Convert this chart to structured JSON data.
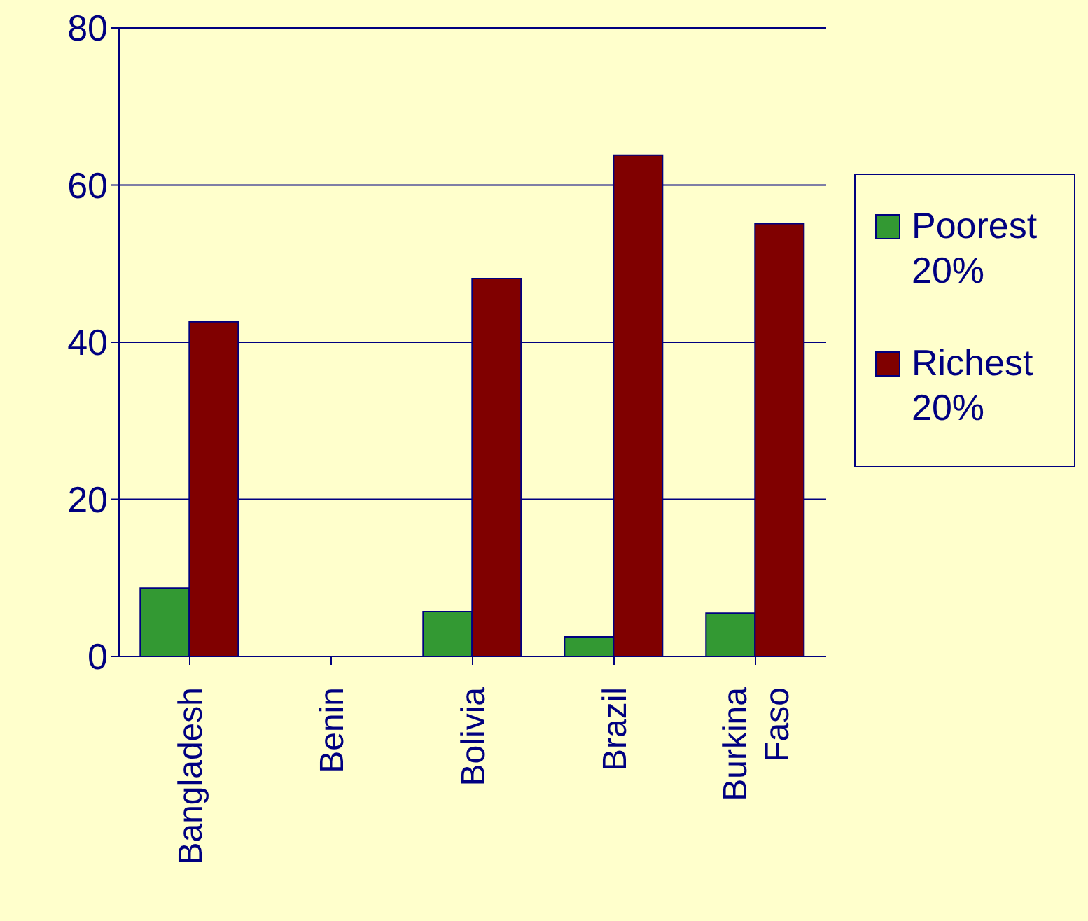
{
  "chart_data": {
    "type": "bar",
    "categories": [
      "Bangladesh",
      "Benin",
      "Bolivia",
      "Brazil",
      "Burkina Faso"
    ],
    "series": [
      {
        "name": "Poorest 20%",
        "color": "#339933",
        "values": [
          8.7,
          null,
          5.7,
          2.5,
          5.5
        ]
      },
      {
        "name": "Richest 20%",
        "color": "#800000",
        "values": [
          42.6,
          null,
          48.1,
          63.8,
          55.1
        ]
      }
    ],
    "ylim": [
      0,
      80
    ],
    "yticks": [
      0,
      20,
      40,
      60,
      80
    ],
    "grid": "y",
    "legend": "right"
  }
}
